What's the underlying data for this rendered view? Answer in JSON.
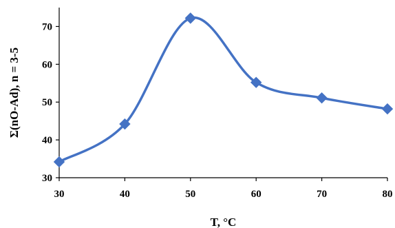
{
  "chart_data": {
    "type": "line",
    "title": "",
    "xlabel": "T, °C",
    "ylabel": "Σ(nO-Ad), n = 3-5",
    "xlim": [
      30,
      80
    ],
    "ylim": [
      30,
      75
    ],
    "xticks": [
      30,
      40,
      50,
      60,
      70,
      80
    ],
    "yticks": [
      30,
      40,
      50,
      60,
      70
    ],
    "grid": false,
    "legend": "none",
    "smooth": true,
    "series": [
      {
        "x": [
          30,
          40,
          50,
          60,
          70,
          80
        ],
        "y": [
          34.2,
          44.2,
          72.2,
          55.2,
          51.1,
          48.2
        ],
        "color": "#4472C4",
        "marker": "diamond"
      }
    ]
  }
}
